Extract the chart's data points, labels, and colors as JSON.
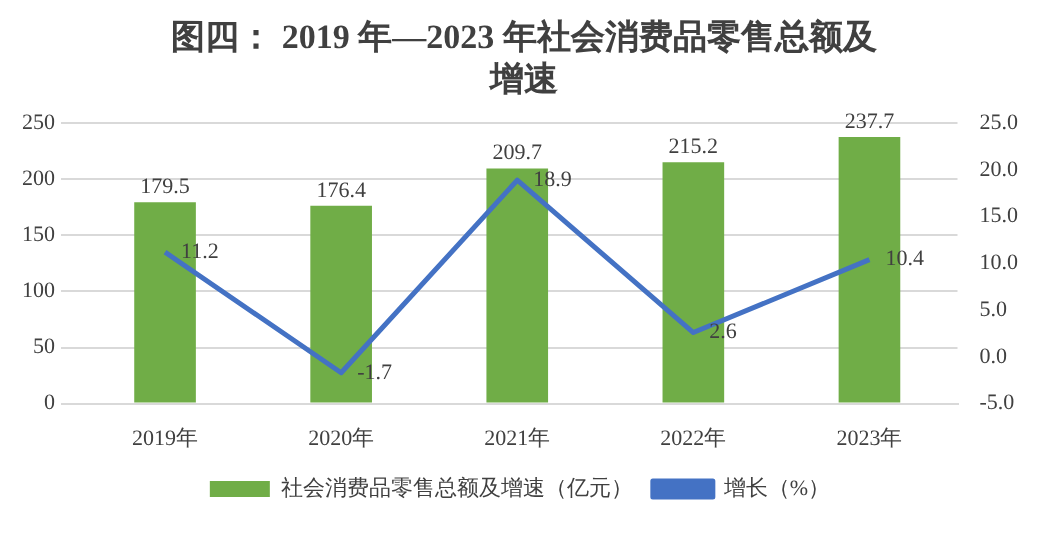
{
  "chart_data": {
    "type": "bar",
    "title": "图四： 2019 年—2023 年社会消费品零售总额及增速",
    "categories": [
      "2019年",
      "2020年",
      "2021年",
      "2022年",
      "2023年"
    ],
    "series": [
      {
        "name": "社会消费品零售总额及增速（亿元）",
        "color": "#70ad47",
        "values": [
          179.5,
          176.4,
          209.7,
          215.2,
          237.7
        ]
      },
      {
        "name": "增长（%）",
        "type": "line",
        "axis": "y2",
        "color": "#4472c4",
        "values": [
          11.2,
          -1.7,
          18.9,
          2.6,
          10.4
        ]
      }
    ],
    "ylim": [
      0,
      250
    ],
    "yticks": [
      0,
      50,
      100,
      150,
      200,
      250
    ],
    "y2lim": [
      -5,
      25
    ],
    "y2ticks": [
      {
        "value": -5,
        "label": "-5.0"
      },
      {
        "value": 0,
        "label": "0.0"
      },
      {
        "value": 5,
        "label": "5.0"
      },
      {
        "value": 10,
        "label": "10.0"
      },
      {
        "value": 15,
        "label": "15.0"
      },
      {
        "value": 20,
        "label": "20.0"
      },
      {
        "value": 25,
        "label": "25.0"
      }
    ],
    "grid": "y",
    "legend": "bottom",
    "marker": "none",
    "data_labels": true
  }
}
